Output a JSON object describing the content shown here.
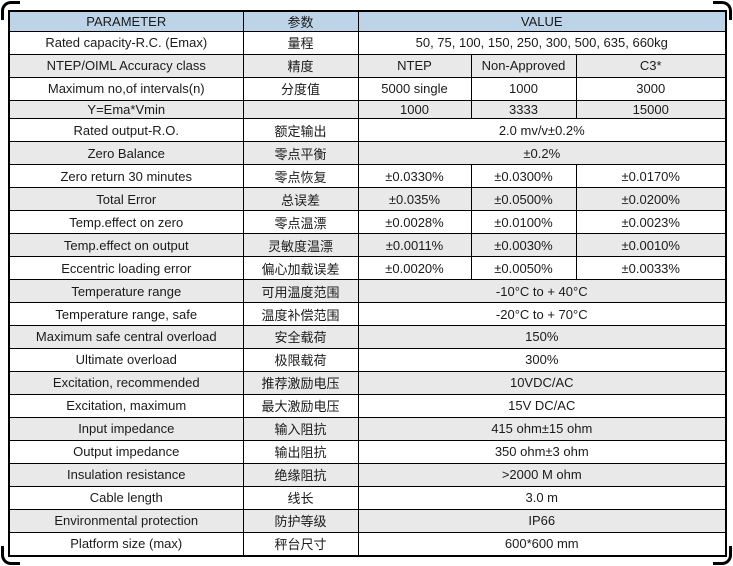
{
  "table": {
    "headers": {
      "param": "PARAMETER",
      "cn": "参数",
      "value": "VALUE"
    },
    "colors": {
      "header_bg": "#bdd3e8",
      "alt_row_bg": "#e9e9e9",
      "border": "#000000"
    },
    "rows": [
      {
        "param": "Rated capacity-R.C. (Emax)",
        "cn": "量程",
        "values": [
          "50, 75, 100, 150, 250, 300, 500, 635,  660kg"
        ]
      },
      {
        "param": "NTEP/OIML Accuracy class",
        "cn": "精度",
        "values": [
          "NTEP",
          "Non-Approved",
          "C3*"
        ]
      },
      {
        "param": "Maximum no,of intervals(n)",
        "cn": "分度值",
        "values": [
          "5000 single",
          "1000",
          "3000"
        ]
      },
      {
        "param": "Y=Ema*Vmin",
        "cn": "",
        "values": [
          "1000",
          "3333",
          "15000"
        ]
      },
      {
        "param": "Rated output-R.O.",
        "cn": "额定输出",
        "values": [
          "2.0 mv/v±0.2%"
        ]
      },
      {
        "param": "Zero Balance",
        "cn": "零点平衡",
        "values": [
          "±0.2%"
        ]
      },
      {
        "param": "Zero return 30 minutes",
        "cn": "零点恢复",
        "values": [
          "±0.0330%",
          "±0.0300%",
          "±0.0170%"
        ]
      },
      {
        "param": "Total Error",
        "cn": "总误差",
        "values": [
          "±0.035%",
          "±0.0500%",
          "±0.0200%"
        ]
      },
      {
        "param": "Temp.effect on zero",
        "cn": "零点温漂",
        "values": [
          "±0.0028%",
          "±0.0100%",
          "±0.0023%"
        ]
      },
      {
        "param": "Temp.effect on output",
        "cn": "灵敏度温漂",
        "values": [
          "±0.0011%",
          "±0.0030%",
          "±0.0010%"
        ]
      },
      {
        "param": "Eccentric loading error",
        "cn": "偏心加载误差",
        "values": [
          "±0.0020%",
          "±0.0050%",
          "±0.0033%"
        ]
      },
      {
        "param": "Temperature range",
        "cn": "可用温度范围",
        "values": [
          "-10°C to + 40°C"
        ]
      },
      {
        "param": "Temperature range, safe",
        "cn": "温度补偿范围",
        "values": [
          "-20°C to + 70°C"
        ]
      },
      {
        "param": "Maximum safe central overload",
        "cn": "安全载荷",
        "values": [
          "150%"
        ]
      },
      {
        "param": "Ultimate overload",
        "cn": "极限载荷",
        "values": [
          "300%"
        ]
      },
      {
        "param": "Excitation, recommended",
        "cn": "推荐激励电压",
        "values": [
          "10VDC/AC"
        ]
      },
      {
        "param": "Excitation, maximum",
        "cn": "最大激励电压",
        "values": [
          "15V DC/AC"
        ]
      },
      {
        "param": "Input impedance",
        "cn": "输入阻抗",
        "values": [
          "415 ohm±15 ohm"
        ]
      },
      {
        "param": "Output impedance",
        "cn": "输出阻抗",
        "values": [
          "350 ohm±3 ohm"
        ]
      },
      {
        "param": "Insulation resistance",
        "cn": "绝缘阻抗",
        "values": [
          ">2000 M ohm"
        ]
      },
      {
        "param": "Cable length",
        "cn": "线长",
        "values": [
          "3.0 m"
        ]
      },
      {
        "param": "Environmental protection",
        "cn": "防护等级",
        "values": [
          "IP66"
        ]
      },
      {
        "param": "Platform size (max)",
        "cn": "秤台尺寸",
        "values": [
          "600*600 mm"
        ]
      }
    ]
  }
}
